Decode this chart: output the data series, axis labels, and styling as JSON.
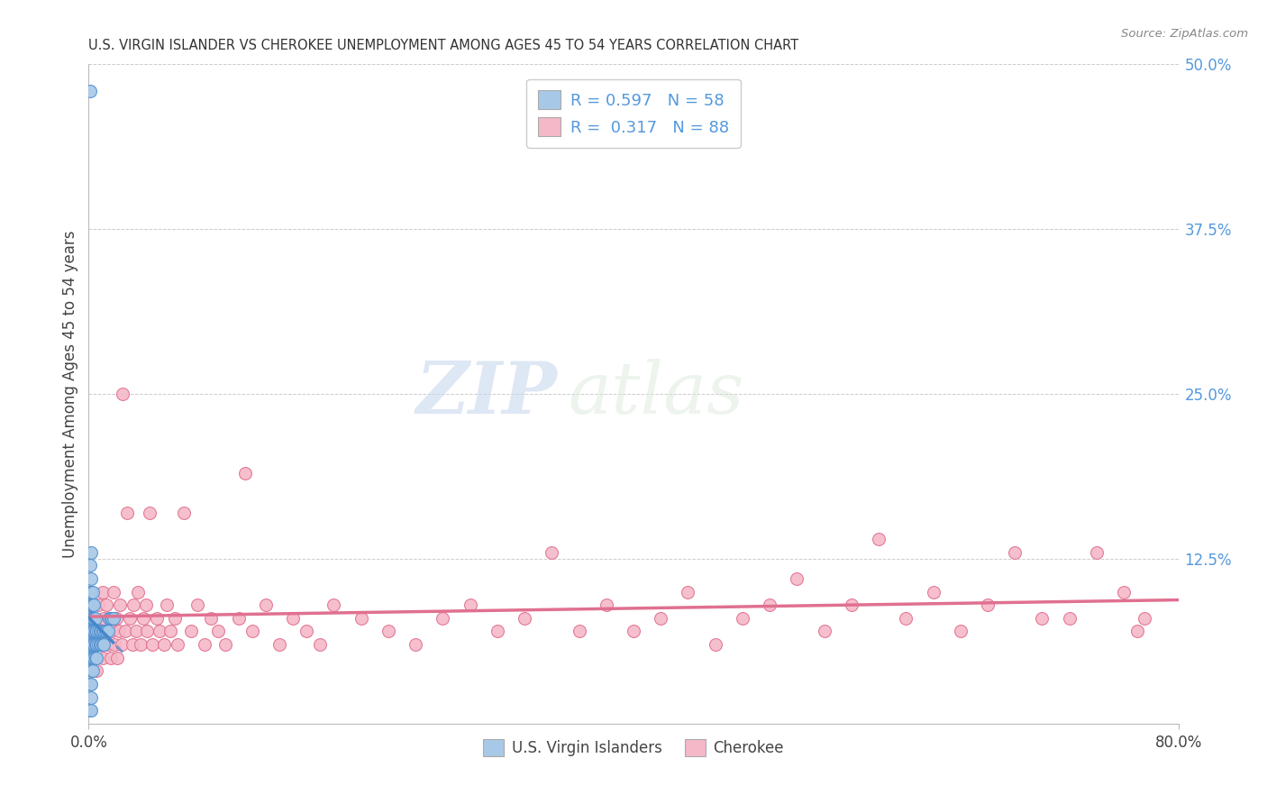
{
  "title": "U.S. VIRGIN ISLANDER VS CHEROKEE UNEMPLOYMENT AMONG AGES 45 TO 54 YEARS CORRELATION CHART",
  "source": "Source: ZipAtlas.com",
  "ylabel": "Unemployment Among Ages 45 to 54 years",
  "blue_R": 0.597,
  "blue_N": 58,
  "pink_R": 0.317,
  "pink_N": 88,
  "blue_label": "U.S. Virgin Islanders",
  "pink_label": "Cherokee",
  "blue_color": "#a8c8e8",
  "pink_color": "#f5b8c8",
  "blue_edge_color": "#5090d0",
  "pink_edge_color": "#e07090",
  "blue_line_color": "#4488cc",
  "pink_line_color": "#e07090",
  "watermark_zip": "ZIP",
  "watermark_atlas": "atlas",
  "xlim": [
    0.0,
    0.8
  ],
  "ylim": [
    0.0,
    0.5
  ],
  "blue_scatter_x": [
    0.001,
    0.001,
    0.001,
    0.001,
    0.001,
    0.001,
    0.001,
    0.001,
    0.001,
    0.001,
    0.002,
    0.002,
    0.002,
    0.002,
    0.002,
    0.002,
    0.002,
    0.002,
    0.002,
    0.002,
    0.002,
    0.002,
    0.003,
    0.003,
    0.003,
    0.003,
    0.003,
    0.003,
    0.003,
    0.004,
    0.004,
    0.004,
    0.004,
    0.004,
    0.005,
    0.005,
    0.005,
    0.005,
    0.006,
    0.006,
    0.006,
    0.007,
    0.007,
    0.008,
    0.008,
    0.009,
    0.009,
    0.01,
    0.01,
    0.011,
    0.011,
    0.012,
    0.013,
    0.014,
    0.015,
    0.016,
    0.017,
    0.018
  ],
  "blue_scatter_y": [
    0.48,
    0.12,
    0.1,
    0.09,
    0.08,
    0.07,
    0.06,
    0.05,
    0.03,
    0.01,
    0.13,
    0.11,
    0.1,
    0.09,
    0.08,
    0.07,
    0.06,
    0.05,
    0.04,
    0.03,
    0.02,
    0.01,
    0.1,
    0.09,
    0.08,
    0.07,
    0.06,
    0.05,
    0.04,
    0.09,
    0.08,
    0.07,
    0.06,
    0.05,
    0.08,
    0.07,
    0.06,
    0.05,
    0.07,
    0.06,
    0.05,
    0.07,
    0.06,
    0.07,
    0.06,
    0.07,
    0.06,
    0.07,
    0.06,
    0.07,
    0.06,
    0.07,
    0.07,
    0.07,
    0.08,
    0.08,
    0.08,
    0.08
  ],
  "pink_scatter_x": [
    0.005,
    0.006,
    0.007,
    0.008,
    0.01,
    0.01,
    0.011,
    0.012,
    0.013,
    0.014,
    0.015,
    0.016,
    0.017,
    0.018,
    0.019,
    0.02,
    0.021,
    0.022,
    0.023,
    0.024,
    0.025,
    0.027,
    0.028,
    0.03,
    0.032,
    0.033,
    0.035,
    0.036,
    0.038,
    0.04,
    0.042,
    0.043,
    0.045,
    0.047,
    0.05,
    0.052,
    0.055,
    0.057,
    0.06,
    0.063,
    0.065,
    0.07,
    0.075,
    0.08,
    0.085,
    0.09,
    0.095,
    0.1,
    0.11,
    0.115,
    0.12,
    0.13,
    0.14,
    0.15,
    0.16,
    0.17,
    0.18,
    0.2,
    0.22,
    0.24,
    0.26,
    0.28,
    0.3,
    0.32,
    0.34,
    0.36,
    0.38,
    0.4,
    0.42,
    0.44,
    0.46,
    0.48,
    0.5,
    0.52,
    0.54,
    0.56,
    0.58,
    0.6,
    0.62,
    0.64,
    0.66,
    0.68,
    0.7,
    0.72,
    0.74,
    0.76,
    0.77,
    0.775
  ],
  "pink_scatter_y": [
    0.06,
    0.04,
    0.09,
    0.07,
    0.1,
    0.05,
    0.08,
    0.07,
    0.09,
    0.06,
    0.08,
    0.05,
    0.07,
    0.1,
    0.06,
    0.08,
    0.05,
    0.07,
    0.09,
    0.06,
    0.25,
    0.07,
    0.16,
    0.08,
    0.06,
    0.09,
    0.07,
    0.1,
    0.06,
    0.08,
    0.09,
    0.07,
    0.16,
    0.06,
    0.08,
    0.07,
    0.06,
    0.09,
    0.07,
    0.08,
    0.06,
    0.16,
    0.07,
    0.09,
    0.06,
    0.08,
    0.07,
    0.06,
    0.08,
    0.19,
    0.07,
    0.09,
    0.06,
    0.08,
    0.07,
    0.06,
    0.09,
    0.08,
    0.07,
    0.06,
    0.08,
    0.09,
    0.07,
    0.08,
    0.13,
    0.07,
    0.09,
    0.07,
    0.08,
    0.1,
    0.06,
    0.08,
    0.09,
    0.11,
    0.07,
    0.09,
    0.14,
    0.08,
    0.1,
    0.07,
    0.09,
    0.13,
    0.08,
    0.08,
    0.13,
    0.1,
    0.07,
    0.08
  ],
  "figsize": [
    14.06,
    8.92
  ],
  "dpi": 100
}
